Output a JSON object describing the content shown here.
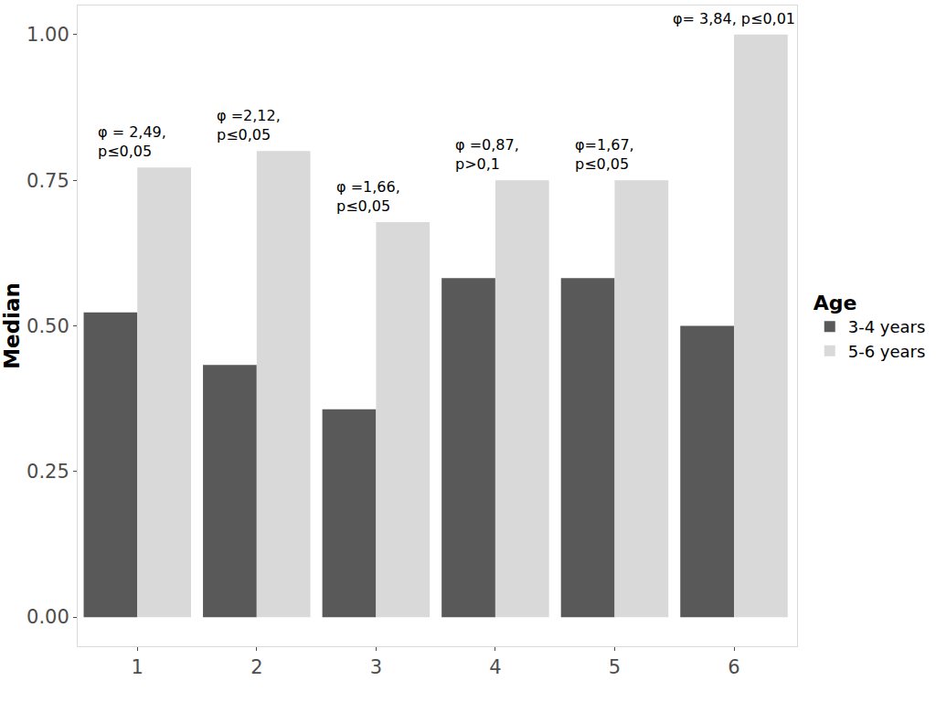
{
  "chart_data": {
    "type": "bar",
    "categories": [
      "1",
      "2",
      "3",
      "4",
      "5",
      "6"
    ],
    "series": [
      {
        "name": "3-4 years",
        "color": "#595959",
        "values": [
          0.523,
          0.433,
          0.357,
          0.582,
          0.582,
          0.5
        ]
      },
      {
        "name": "5-6 years",
        "color": "#d9d9d9",
        "values": [
          0.772,
          0.8,
          0.678,
          0.75,
          0.75,
          1.0
        ]
      }
    ],
    "y_label": "Median",
    "legend_title": "Age",
    "legend": "right",
    "grid": false,
    "ylim": [
      -0.05,
      1.05
    ],
    "yticks": [
      {
        "value": 0,
        "label": "0.00"
      },
      {
        "value": 0.25,
        "label": "0.25"
      },
      {
        "value": 0.5,
        "label": "0.50"
      },
      {
        "value": 0.75,
        "label": "0.75"
      },
      {
        "value": 1,
        "label": "1.00"
      }
    ],
    "annotations": [
      {
        "category": "1",
        "text": "φ = 2,49,\np≤0,05"
      },
      {
        "category": "2",
        "text": "φ =2,12,\np≤0,05"
      },
      {
        "category": "3",
        "text": "φ =1,66,\np≤0,05"
      },
      {
        "category": "4",
        "text": "φ =0,87,\np>0,1"
      },
      {
        "category": "5",
        "text": "φ=1,67,\np≤0,05"
      },
      {
        "category": "6",
        "text": "φ= 3,84, p≤0,01"
      }
    ]
  }
}
